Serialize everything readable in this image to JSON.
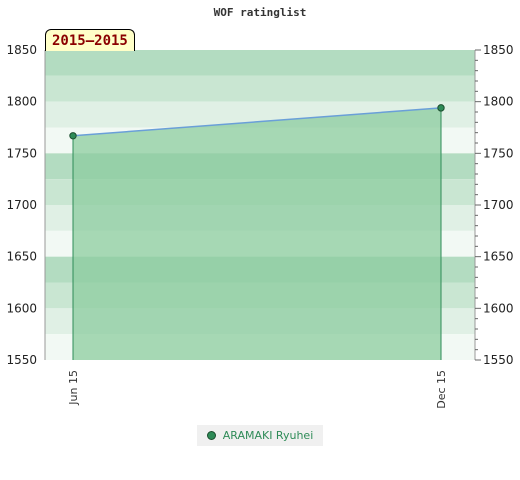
{
  "chart_data": {
    "type": "area",
    "title": "WOF ratinglist",
    "period_label": "2015—2015",
    "categories": [
      "Jun 15",
      "Dec 15"
    ],
    "series": [
      {
        "name": "ARAMAKI Ryuhei",
        "values": [
          1767,
          1794
        ]
      }
    ],
    "ylim": [
      1550,
      1850
    ],
    "yticks": [
      1550,
      1600,
      1650,
      1700,
      1750,
      1800,
      1850
    ],
    "y_axis_both_sides": true,
    "grid": true,
    "legend_position": "bottom-center",
    "colors": {
      "line": "#6a9fd8",
      "fill": "#8ccc9f",
      "marker": "#2e8b57",
      "drop_line": "#2e8b57"
    }
  }
}
